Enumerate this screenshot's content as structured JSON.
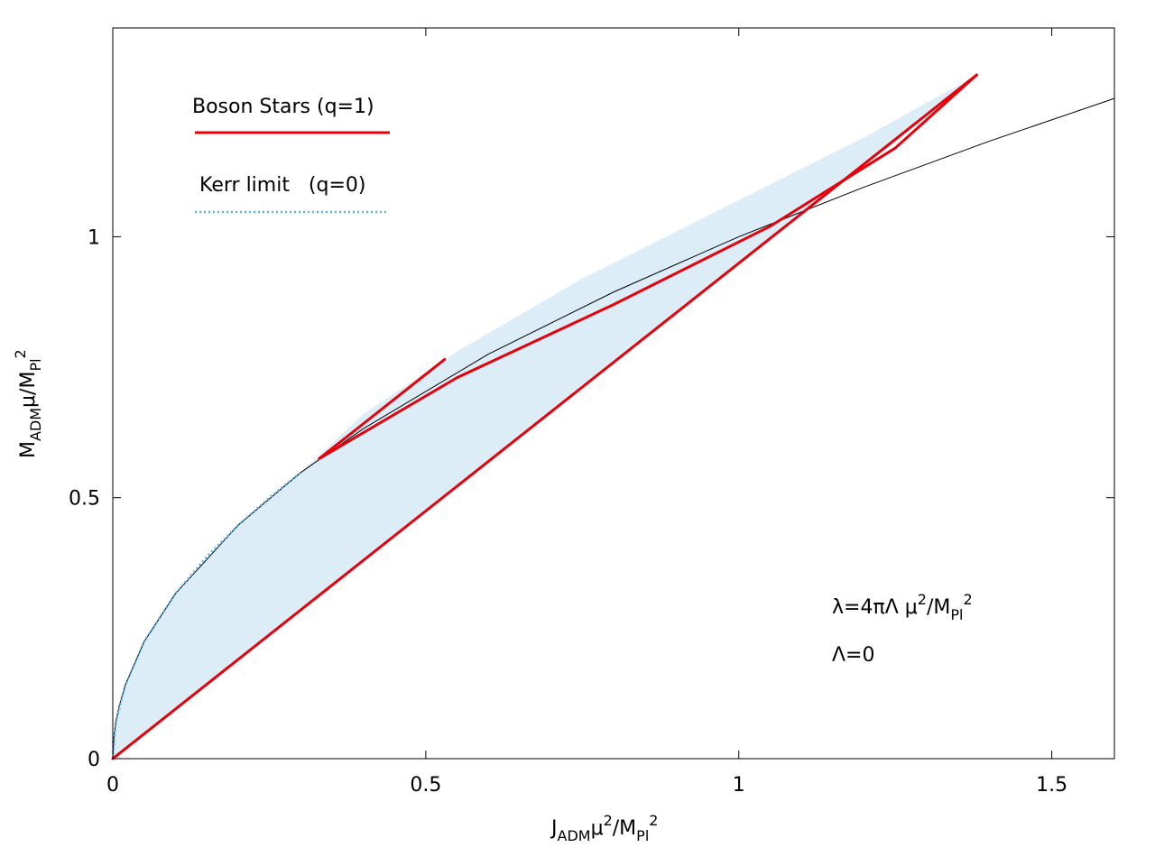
{
  "chart_data": {
    "type": "line",
    "xlabel": {
      "base": "J",
      "sub": "ADM",
      "mid": "μ",
      "sup": "2",
      "slash": "/M",
      "sub2": "Pl",
      "sup2": "2"
    },
    "ylabel": {
      "base": "M",
      "sub": "ADM",
      "mid": "μ/M",
      "sub2": "Pl",
      "sup2": "2"
    },
    "xlim": [
      0,
      1.6
    ],
    "ylim": [
      0,
      1.4
    ],
    "xticks": [
      {
        "value": 0,
        "label": "0"
      },
      {
        "value": 0.5,
        "label": "0.5"
      },
      {
        "value": 1,
        "label": "1"
      },
      {
        "value": 1.5,
        "label": "1.5"
      }
    ],
    "yticks": [
      {
        "value": 0,
        "label": "0"
      },
      {
        "value": 0.5,
        "label": "0.5"
      },
      {
        "value": 1,
        "label": "1"
      }
    ],
    "grid": false,
    "legend_position": "top-left",
    "legend": [
      {
        "label": "Boson Stars (q=1)",
        "color": "#e8000b",
        "style": "solid"
      },
      {
        "label": "Kerr limit   (q=0)",
        "color": "#56b4e9",
        "style": "dotted"
      }
    ],
    "annotations": {
      "line1": {
        "pre": "λ=4πΛ μ",
        "sup": "2",
        "mid": "/M",
        "sub": "Pl",
        "sup2": "2"
      },
      "line2": "Λ=0"
    },
    "colors": {
      "boson": "#e8000b",
      "kerr": "#56b4e9",
      "fill": "#dcedf7",
      "reference": "#000000"
    },
    "series": [
      {
        "kind": "boson_lower_edge",
        "points": [
          [
            0,
            0
          ],
          [
            1.38,
            1.31
          ]
        ]
      },
      {
        "kind": "boson_upper_branch",
        "points": [
          [
            0.33,
            0.575
          ],
          [
            0.55,
            0.73
          ],
          [
            0.8,
            0.87
          ],
          [
            1.05,
            1.02
          ],
          [
            1.25,
            1.17
          ],
          [
            1.38,
            1.31
          ]
        ]
      },
      {
        "kind": "boson_spur",
        "points": [
          [
            0.33,
            0.575
          ],
          [
            0.53,
            0.765
          ]
        ]
      },
      {
        "kind": "kerr_limit",
        "points": [
          [
            0,
            0
          ],
          [
            0.005,
            0.07
          ],
          [
            0.02,
            0.141
          ],
          [
            0.05,
            0.224
          ],
          [
            0.1,
            0.316
          ],
          [
            0.15,
            0.387
          ],
          [
            0.2,
            0.447
          ],
          [
            0.25,
            0.5
          ],
          [
            0.3,
            0.548
          ]
        ]
      },
      {
        "kind": "reference_sqrt_curve",
        "points": [
          [
            0,
            0
          ],
          [
            0.002,
            0.045
          ],
          [
            0.005,
            0.071
          ],
          [
            0.01,
            0.1
          ],
          [
            0.02,
            0.141
          ],
          [
            0.05,
            0.224
          ],
          [
            0.1,
            0.316
          ],
          [
            0.2,
            0.447
          ],
          [
            0.3,
            0.548
          ],
          [
            0.4,
            0.632
          ],
          [
            0.6,
            0.775
          ],
          [
            0.8,
            0.894
          ],
          [
            1.0,
            1.0
          ],
          [
            1.2,
            1.095
          ],
          [
            1.4,
            1.183
          ],
          [
            1.6,
            1.265
          ]
        ]
      },
      {
        "kind": "shaded_region",
        "points": [
          [
            0,
            0
          ],
          [
            0.002,
            0.045
          ],
          [
            0.005,
            0.071
          ],
          [
            0.01,
            0.1
          ],
          [
            0.02,
            0.141
          ],
          [
            0.05,
            0.224
          ],
          [
            0.1,
            0.316
          ],
          [
            0.2,
            0.447
          ],
          [
            0.3,
            0.548
          ],
          [
            0.4,
            0.66
          ],
          [
            0.55,
            0.78
          ],
          [
            0.75,
            0.92
          ],
          [
            1.0,
            1.07
          ],
          [
            1.2,
            1.19
          ],
          [
            1.38,
            1.31
          ],
          [
            0,
            0
          ]
        ]
      }
    ]
  }
}
